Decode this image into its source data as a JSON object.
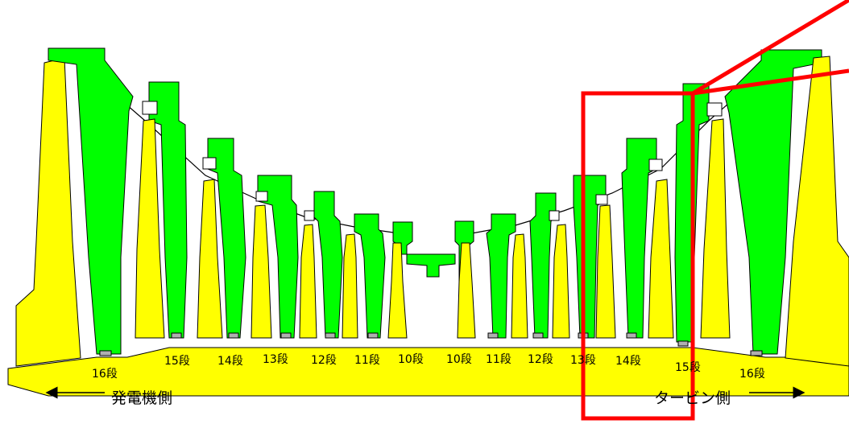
{
  "colors": {
    "rotor": "#ffff00",
    "stator": "#00ff00",
    "outline": "#000000",
    "highlight": "#ff0000",
    "slot": "#b0b0b0"
  },
  "stage_labels": {
    "left_16": "16段",
    "left_15": "15段",
    "left_14": "14段",
    "left_13": "13段",
    "left_12": "12段",
    "left_11": "11段",
    "left_10": "10段",
    "right_10": "10段",
    "right_11": "11段",
    "right_12": "12段",
    "right_13": "13段",
    "right_14": "14段",
    "right_15": "15段",
    "right_16": "16段"
  },
  "sides": {
    "generator": "発電機側",
    "turbine": "タービン側"
  }
}
